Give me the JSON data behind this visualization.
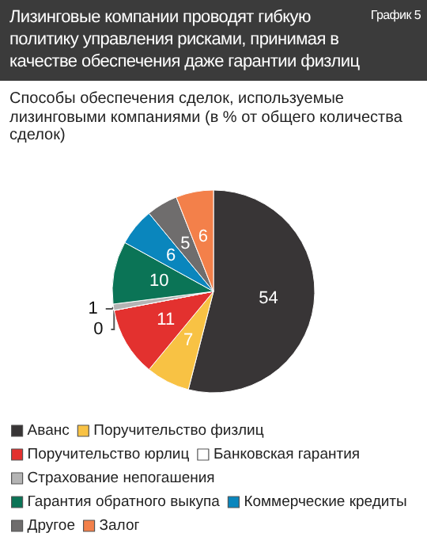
{
  "chart_data": {
    "type": "pie",
    "title": "Лизинговые компании проводят гибкую политику управления рисками, принимая в качестве обеспечения даже гарантии физлиц",
    "subtitle": "Способы обеспечения сделок, используемые лизинговыми компаниями (в % от общего количества сделок)",
    "annotations": [
      "График 5"
    ],
    "categories": [
      "Аванс",
      "Поручительство физлиц",
      "Поручительство юрлиц",
      "Банковская гарантия",
      "Страхование непогашения",
      "Гарантия обратного выкупа",
      "Коммерческие кредиты",
      "Другое",
      "Залог"
    ],
    "values": [
      54,
      7,
      11,
      0,
      1,
      10,
      6,
      5,
      6
    ],
    "colors": [
      "#383536",
      "#f8c244",
      "#e3312f",
      "#ffffff",
      "#b4b4b4",
      "#0b7456",
      "#0a86bd",
      "#6f6d6d",
      "#f3804a"
    ],
    "value_labels": [
      "54",
      "7",
      "11",
      "0",
      "1",
      "10",
      "6",
      "5",
      "6"
    ],
    "legend": "bottom"
  }
}
